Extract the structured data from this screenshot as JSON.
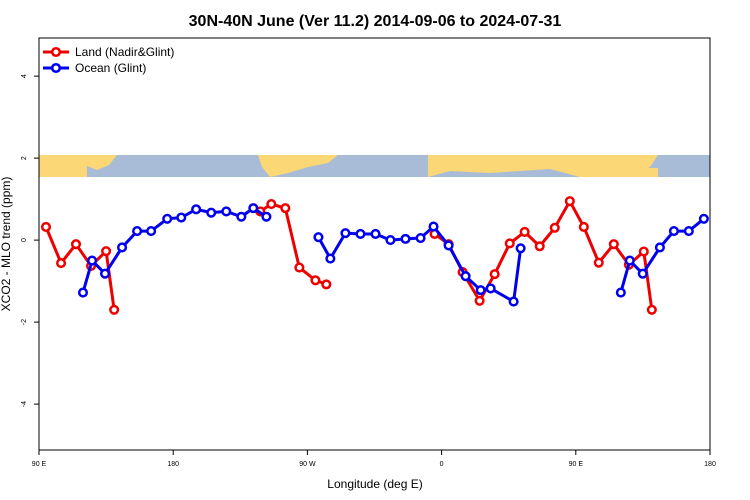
{
  "chart_data": {
    "type": "line",
    "title": "30N-40N June (Ver 11.2)   2014-09-06 to 2024-07-31",
    "x_label": "Longitude (deg E)",
    "y_label": "XCO2 - MLO trend (ppm)",
    "xlim": [
      90,
      540
    ],
    "xticks": [
      {
        "value": 90,
        "label": "90 E"
      },
      {
        "value": 180,
        "label": "180"
      },
      {
        "value": 270,
        "label": "90 W"
      },
      {
        "value": 360,
        "label": "0"
      },
      {
        "value": 450,
        "label": "90 E"
      },
      {
        "value": 540,
        "label": "180"
      }
    ],
    "ylim": [
      -5.12,
      4.93
    ],
    "yticks": [
      -4,
      -2,
      0,
      2,
      4
    ],
    "legend": "top-left",
    "series": [
      {
        "name": "Land (Nadir&Glint)",
        "color": "#ee0000",
        "x": [
          94.7,
          104.8,
          114.8,
          124.9,
          135.0,
          140.4,
          null,
          238.4,
          245.8,
          255.2,
          264.6,
          275.4,
          282.7,
          null,
          355.3,
          364.7,
          374.1,
          385.5,
          395.6,
          405.7,
          415.7,
          425.8,
          435.9,
          446.0,
          455.4,
          465.4,
          475.5,
          485.6,
          495.6,
          501.0
        ],
        "values": [
          0.32,
          -0.56,
          -0.1,
          -0.63,
          -0.27,
          -1.7,
          null,
          0.7,
          0.88,
          0.78,
          -0.67,
          -0.98,
          -1.08,
          null,
          0.15,
          -0.1,
          -0.78,
          -1.48,
          -0.83,
          -0.08,
          0.2,
          -0.15,
          0.3,
          0.95,
          0.32,
          -0.55,
          -0.1,
          -0.6,
          -0.28,
          -1.7
        ]
      },
      {
        "name": "Ocean (Glint)",
        "color": "#0000ee",
        "x": [
          119.5,
          125.6,
          134.3,
          145.7,
          155.8,
          165.2,
          176.0,
          185.4,
          195.4,
          205.5,
          215.6,
          225.7,
          233.7,
          242.5,
          null,
          277.4,
          285.4,
          295.5,
          305.6,
          315.7,
          325.7,
          335.8,
          345.9,
          354.6,
          364.7,
          376.1,
          386.2,
          392.9,
          408.3,
          413.0,
          null,
          480.2,
          486.2,
          494.9,
          506.4,
          515.8,
          525.8,
          535.9
        ],
        "values": [
          -1.28,
          -0.5,
          -0.82,
          -0.18,
          0.22,
          0.22,
          0.52,
          0.55,
          0.75,
          0.67,
          0.7,
          0.57,
          0.78,
          0.57,
          null,
          0.07,
          -0.45,
          0.17,
          0.15,
          0.15,
          0.0,
          0.03,
          0.05,
          0.33,
          -0.13,
          -0.88,
          -1.22,
          -1.18,
          -1.5,
          -0.2,
          null,
          -1.28,
          -0.5,
          -0.82,
          -0.18,
          0.22,
          0.22,
          0.52
        ]
      }
    ]
  }
}
